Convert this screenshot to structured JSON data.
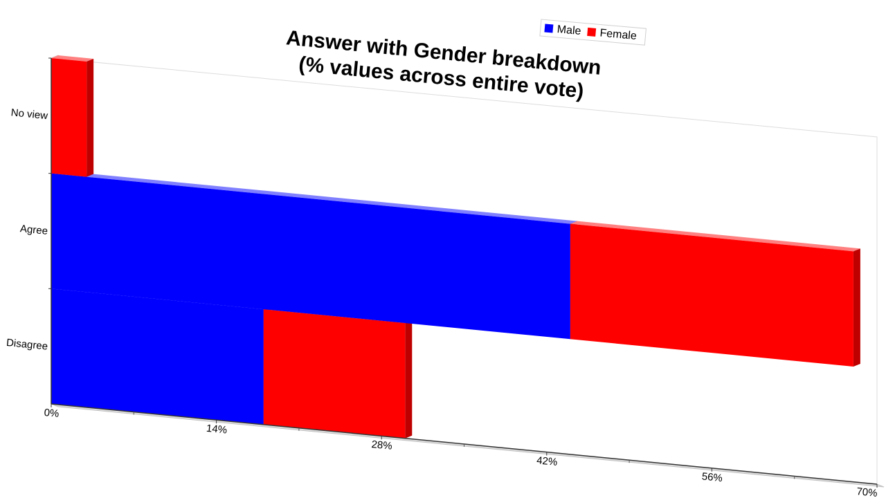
{
  "chart_data": {
    "type": "bar",
    "orientation": "horizontal",
    "stacked": true,
    "three_d": true,
    "title": "Answer with Gender breakdown",
    "subtitle": "(% values across entire vote)",
    "categories": [
      "No view",
      "Agree",
      "Disagree"
    ],
    "series": [
      {
        "name": "Male",
        "color": "#0000ff",
        "values": [
          0,
          44,
          18
        ]
      },
      {
        "name": "Female",
        "color": "#ff0000",
        "values": [
          3,
          24,
          12
        ]
      }
    ],
    "xlim": [
      0,
      70
    ],
    "x_ticks": [
      {
        "value": 0,
        "label": "0%"
      },
      {
        "value": 14,
        "label": "14%"
      },
      {
        "value": 28,
        "label": "28%"
      },
      {
        "value": 42,
        "label": "42%"
      },
      {
        "value": 56,
        "label": "56%"
      },
      {
        "value": 70,
        "label": "70%"
      }
    ],
    "grid": false,
    "legend": {
      "position": "top-right",
      "entries": [
        "Male",
        "Female"
      ]
    }
  }
}
